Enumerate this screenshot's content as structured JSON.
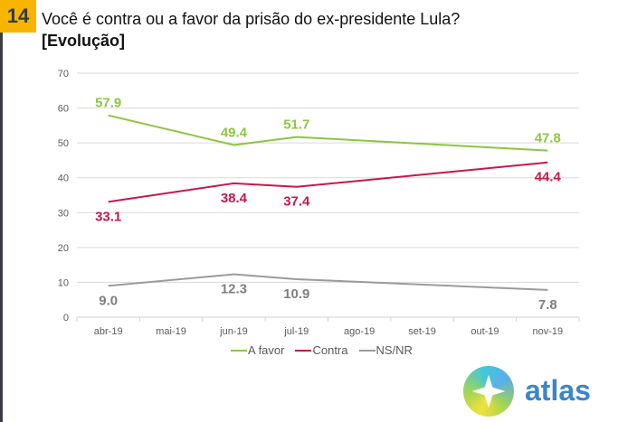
{
  "header": {
    "question_number": "14",
    "title": "Você é contra ou a favor da prisão do ex-presidente Lula?",
    "subtitle": "[Evolução]"
  },
  "brand": {
    "logo_text": "atlas",
    "logo_icon": "compass-star-icon"
  },
  "chart_data": {
    "type": "line",
    "title": "Você é contra ou a favor da prisão do ex-presidente Lula?",
    "subtitle": "[Evolução]",
    "xlabel": "",
    "ylabel": "",
    "categories": [
      "abr-19",
      "mai-19",
      "jun-19",
      "jul-19",
      "ago-19",
      "set-19",
      "out-19",
      "nov-19"
    ],
    "ylim": [
      0,
      70
    ],
    "yticks": [
      0,
      10,
      20,
      30,
      40,
      50,
      60,
      70
    ],
    "grid": true,
    "legend_position": "bottom",
    "series": [
      {
        "name": "A favor",
        "color": "#8cc63f",
        "values": [
          57.9,
          null,
          49.4,
          51.7,
          null,
          null,
          null,
          47.8
        ],
        "labels": [
          "57.9",
          null,
          "49.4",
          "51.7",
          null,
          null,
          null,
          "47.8"
        ],
        "label_position": "above"
      },
      {
        "name": "Contra",
        "color": "#c8174a",
        "values": [
          33.1,
          null,
          38.4,
          37.4,
          null,
          null,
          null,
          44.4
        ],
        "labels": [
          "33.1",
          null,
          "38.4",
          "37.4",
          null,
          null,
          null,
          "44.4"
        ],
        "label_position": "below"
      },
      {
        "name": "NS/NR",
        "color": "#9b9b9b",
        "values": [
          9.0,
          null,
          12.3,
          10.9,
          null,
          null,
          null,
          7.8
        ],
        "labels": [
          "9.0",
          null,
          "12.3",
          "10.9",
          null,
          null,
          null,
          "7.8"
        ],
        "label_position": "below"
      }
    ]
  }
}
